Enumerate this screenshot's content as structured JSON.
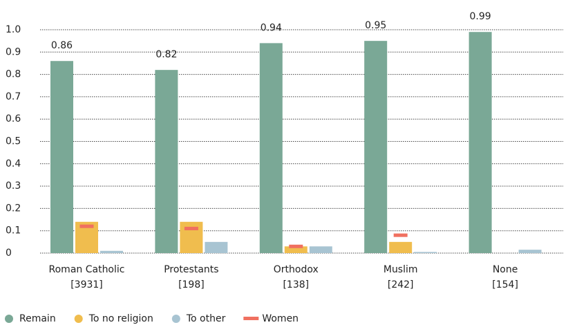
{
  "chart_data": {
    "type": "bar",
    "categories": [
      "Roman Catholic",
      "Protestants",
      "Orthodox",
      "Muslim",
      "None"
    ],
    "category_notes": [
      "[3931]",
      "[198]",
      "[138]",
      "[242]",
      "[154]"
    ],
    "series": [
      {
        "name": "Remain",
        "color": "#7aa896",
        "values": [
          0.86,
          0.82,
          0.94,
          0.95,
          0.99
        ]
      },
      {
        "name": "To no religion",
        "color": "#f0bd4e",
        "values": [
          0.14,
          0.14,
          0.03,
          0.05,
          0
        ]
      },
      {
        "name": "To other",
        "color": "#a8c4d2",
        "values": [
          0.01,
          0.05,
          0.03,
          0.005,
          0.015
        ]
      }
    ],
    "markers": {
      "name": "Women",
      "color": "#f07060",
      "over_series": 1,
      "values": [
        0.12,
        0.11,
        0.03,
        0.08,
        null
      ]
    },
    "value_label_series": 0,
    "ylim": [
      0,
      1
    ],
    "yticks": [
      0,
      0.1,
      0.2,
      0.3,
      0.4,
      0.5,
      0.6,
      0.7,
      0.8,
      0.9,
      {
        "value": 1,
        "label": "1.0"
      }
    ],
    "grid": true
  }
}
